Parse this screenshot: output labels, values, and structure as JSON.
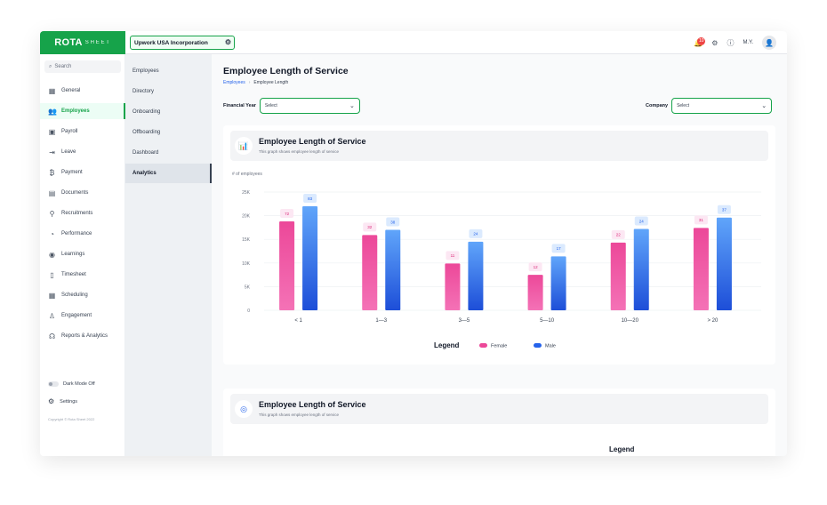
{
  "app": {
    "logo_main": "ROTA",
    "logo_sub": "SHEET",
    "company_name": "Upwork USA Incorporation",
    "notification_count": "10",
    "user_initials": "M.Y."
  },
  "sidebar": {
    "search_placeholder": "Search",
    "items": [
      {
        "label": "General",
        "icon": "grid-icon"
      },
      {
        "label": "Employees",
        "icon": "people-icon",
        "active": true
      },
      {
        "label": "Payroll",
        "icon": "wallet-icon"
      },
      {
        "label": "Leave",
        "icon": "exit-icon"
      },
      {
        "label": "Payment",
        "icon": "money-icon"
      },
      {
        "label": "Documents",
        "icon": "document-icon"
      },
      {
        "label": "Recruitments",
        "icon": "recruit-icon"
      },
      {
        "label": "Performance",
        "icon": "performance-icon"
      },
      {
        "label": "Learnings",
        "icon": "learning-icon"
      },
      {
        "label": "Timesheet",
        "icon": "clipboard-icon"
      },
      {
        "label": "Scheduling",
        "icon": "calendar-icon"
      },
      {
        "label": "Engagement",
        "icon": "engagement-icon"
      },
      {
        "label": "Reports & Analytics",
        "icon": "reports-icon"
      }
    ],
    "dark_mode_label": "Dark Mode Off",
    "settings_label": "Settings",
    "copyright": "Copyright © Rota Sheet 2022"
  },
  "subnav": {
    "items": [
      "Employees",
      "Directory",
      "Onboarding",
      "Offboarding",
      "Dashboard",
      "Analytics"
    ],
    "active": "Analytics"
  },
  "page": {
    "title": "Employee Length of Service",
    "breadcrumb": [
      "Employees",
      "Employee Length"
    ],
    "financial_year_label": "Financial Year",
    "financial_year_value": "Select",
    "company_label": "Company",
    "company_value": "Select"
  },
  "cards": [
    {
      "title": "Employee Length of Service",
      "subtitle": "This graph shows employee length of service"
    },
    {
      "title": "Employee Length of Service",
      "subtitle": "This graph shows employee length of service",
      "legend_title": "Legend"
    }
  ],
  "colors": {
    "brand": "#16a34a",
    "female": "#ec4899",
    "male": "#2563eb"
  },
  "chart_data": {
    "type": "bar",
    "title": "",
    "ylabel": "# of employees",
    "xlabel": "",
    "categories": [
      "< 1",
      "1—3",
      "3—5",
      "5—10",
      "10—20",
      "> 20"
    ],
    "yticks": [
      "0",
      "5K",
      "10K",
      "15K",
      "20K",
      "25K"
    ],
    "ylim": [
      0,
      25000
    ],
    "series": [
      {
        "name": "Female",
        "values": [
          18800,
          15900,
          9900,
          7500,
          14300,
          17400
        ],
        "labels": [
          "72",
          "32",
          "11",
          "12",
          "22",
          "31"
        ]
      },
      {
        "name": "Male",
        "values": [
          22000,
          17000,
          14500,
          11400,
          17200,
          19600
        ],
        "labels": [
          "83",
          "38",
          "24",
          "17",
          "24",
          "37"
        ]
      }
    ],
    "legend_title": "Legend",
    "legend_position": "bottom-center",
    "grid": true
  }
}
